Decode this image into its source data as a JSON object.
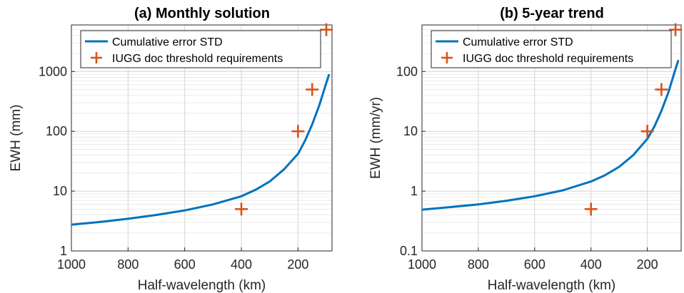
{
  "chart_data": [
    {
      "type": "line",
      "title": "(a) Monthly solution",
      "xlabel": "Half-wavelength (km)",
      "ylabel": "EWH (mm)",
      "x_reversed": true,
      "xlim": [
        1000,
        80
      ],
      "ylim": [
        1,
        6000
      ],
      "yscale": "log",
      "grid": true,
      "legend_position": "top-left",
      "xticks": [
        1000,
        800,
        600,
        400,
        200
      ],
      "xtick_labels": [
        "1000",
        "800",
        "600",
        "400",
        "200"
      ],
      "yticks": [
        1,
        10,
        100,
        1000
      ],
      "ytick_labels": [
        "1",
        "10",
        "100",
        "1000"
      ],
      "series": [
        {
          "name": "Cumulative error STD",
          "kind": "line",
          "color": "#0072BD",
          "x": [
            1000,
            900,
            800,
            700,
            600,
            500,
            400,
            350,
            300,
            250,
            200,
            175,
            150,
            125,
            100,
            90
          ],
          "y": [
            2.75,
            3.05,
            3.45,
            4.0,
            4.75,
            6.0,
            8.2,
            10.5,
            14.5,
            23,
            42,
            70,
            130,
            270,
            650,
            900
          ]
        },
        {
          "name": "IUGG doc threshold requirements",
          "kind": "marker",
          "marker": "+",
          "color": "#D95319",
          "x": [
            400,
            200,
            150,
            100
          ],
          "y": [
            5,
            100,
            500,
            5000
          ]
        }
      ]
    },
    {
      "type": "line",
      "title": "(b) 5-year trend",
      "xlabel": "Half-wavelength (km)",
      "ylabel": "EWH (mm/yr)",
      "x_reversed": true,
      "xlim": [
        1000,
        80
      ],
      "ylim": [
        0.1,
        600
      ],
      "yscale": "log",
      "grid": true,
      "legend_position": "top-left",
      "xticks": [
        1000,
        800,
        600,
        400,
        200
      ],
      "xtick_labels": [
        "1000",
        "800",
        "600",
        "400",
        "200"
      ],
      "yticks": [
        0.1,
        1,
        10,
        100
      ],
      "ytick_labels": [
        "0.1",
        "1",
        "10",
        "100"
      ],
      "series": [
        {
          "name": "Cumulative error STD",
          "kind": "line",
          "color": "#0072BD",
          "x": [
            1000,
            900,
            800,
            700,
            600,
            500,
            400,
            350,
            300,
            250,
            200,
            175,
            150,
            125,
            100,
            90
          ],
          "y": [
            0.49,
            0.54,
            0.6,
            0.69,
            0.82,
            1.03,
            1.45,
            1.85,
            2.55,
            4.0,
            7.5,
            12,
            22,
            45,
            110,
            155
          ]
        },
        {
          "name": "IUGG doc threshold requirements",
          "kind": "marker",
          "marker": "+",
          "color": "#D95319",
          "x": [
            400,
            200,
            150,
            100
          ],
          "y": [
            0.5,
            10,
            50,
            500
          ]
        }
      ]
    }
  ]
}
